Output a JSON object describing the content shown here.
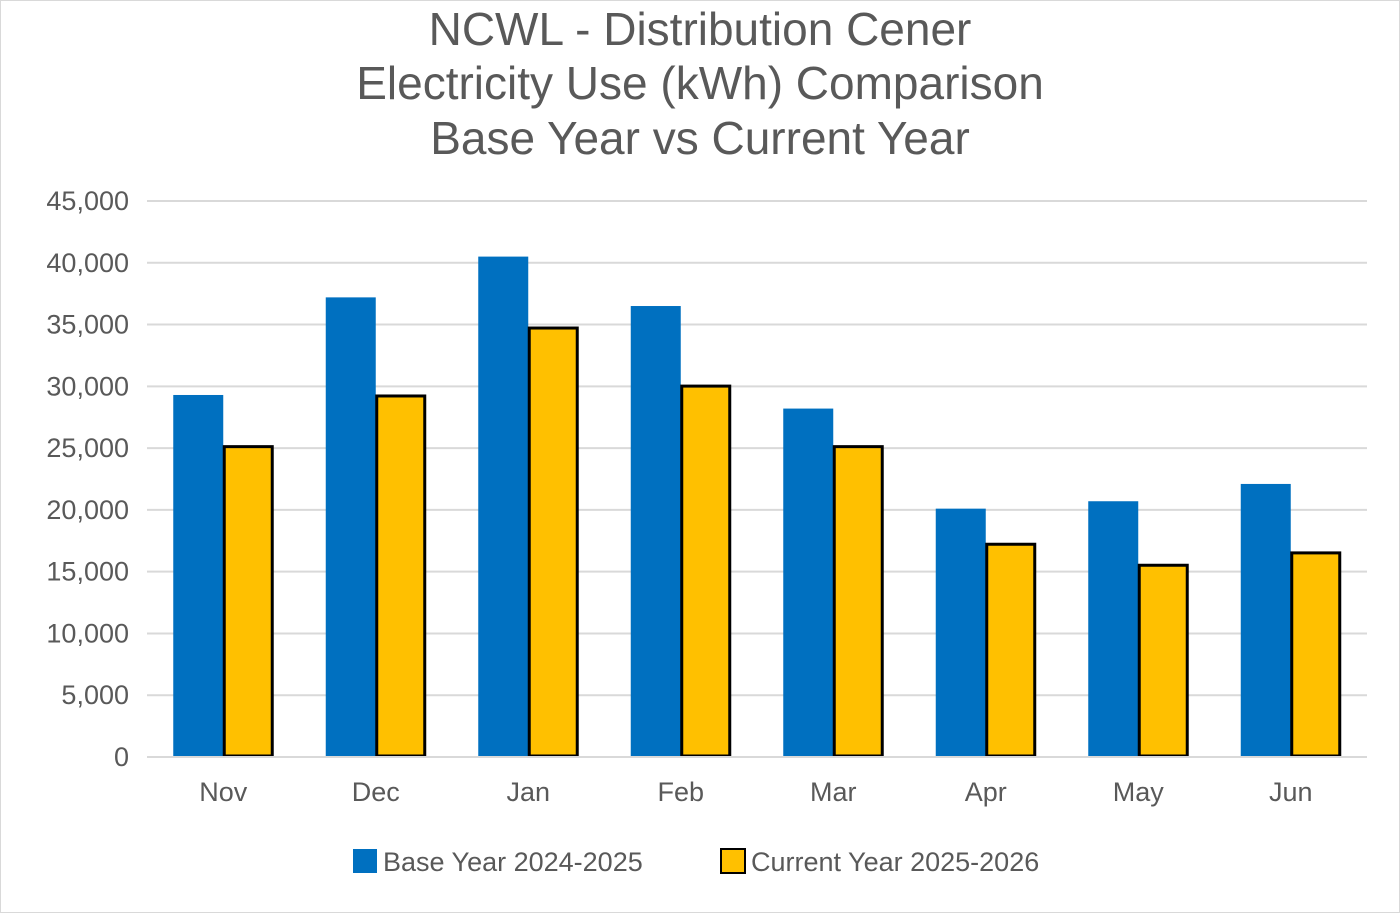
{
  "chart_data": {
    "type": "bar",
    "title_lines": [
      "NCWL - Distribution Cener",
      "Electricity Use (kWh) Comparison",
      "Base Year vs Current Year"
    ],
    "categories": [
      "Nov",
      "Dec",
      "Jan",
      "Feb",
      "Mar",
      "Apr",
      "May",
      "Jun"
    ],
    "series": [
      {
        "name": "Base Year 2024-2025",
        "color": "#0070C0",
        "values": [
          29300,
          37200,
          40500,
          36500,
          28200,
          20100,
          20700,
          22100
        ]
      },
      {
        "name": "Current Year 2025-2026",
        "color": "#FFC000",
        "values": [
          25200,
          29300,
          34800,
          30100,
          25200,
          17300,
          15600,
          16600
        ]
      }
    ],
    "ylim": [
      0,
      45000
    ],
    "yticks": [
      0,
      5000,
      10000,
      15000,
      20000,
      25000,
      30000,
      35000,
      40000,
      45000
    ],
    "ytick_labels": [
      "0",
      "5,000",
      "10,000",
      "15,000",
      "20,000",
      "25,000",
      "30,000",
      "35,000",
      "40,000",
      "45,000"
    ],
    "grid": true,
    "legend_position": "bottom"
  }
}
